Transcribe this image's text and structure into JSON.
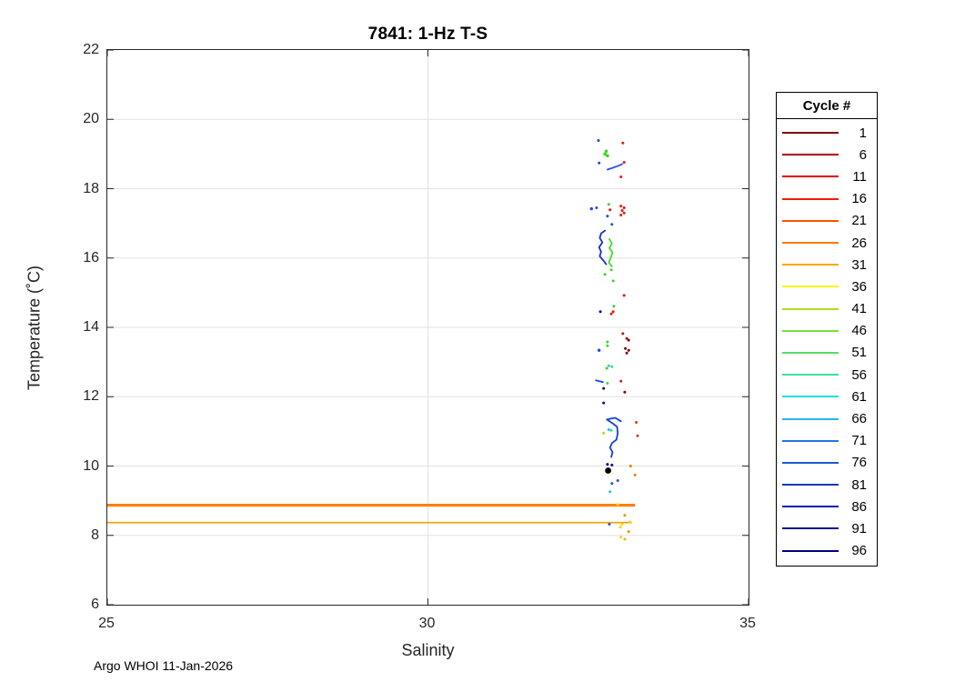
{
  "title": "7841: 1-Hz T-S",
  "xlabel": "Salinity",
  "ylabel": "Temperature (˚C)",
  "footer": "Argo WHOI 11-Jan-2026",
  "legend": {
    "title": "Cycle #",
    "entries": [
      {
        "label": "1",
        "color": "#7f0000"
      },
      {
        "label": "6",
        "color": "#b00000"
      },
      {
        "label": "11",
        "color": "#e10000"
      },
      {
        "label": "16",
        "color": "#f41a00"
      },
      {
        "label": "21",
        "color": "#fb5300"
      },
      {
        "label": "26",
        "color": "#f97b00"
      },
      {
        "label": "31",
        "color": "#ffa600"
      },
      {
        "label": "36",
        "color": "#f5f514"
      },
      {
        "label": "41",
        "color": "#aade22"
      },
      {
        "label": "46",
        "color": "#77e03a"
      },
      {
        "label": "51",
        "color": "#55dd66"
      },
      {
        "label": "56",
        "color": "#3ce0a0"
      },
      {
        "label": "61",
        "color": "#21dede"
      },
      {
        "label": "66",
        "color": "#28b4ee"
      },
      {
        "label": "71",
        "color": "#2277e0"
      },
      {
        "label": "76",
        "color": "#1b5ad0"
      },
      {
        "label": "81",
        "color": "#1238c0"
      },
      {
        "label": "86",
        "color": "#0a1fae"
      },
      {
        "label": "91",
        "color": "#051091"
      },
      {
        "label": "96",
        "color": "#000080"
      }
    ]
  },
  "chart_data": {
    "type": "scatter",
    "title": "7841: 1-Hz T-S",
    "xlabel": "Salinity",
    "ylabel": "Temperature (C)",
    "xlim": [
      25,
      35
    ],
    "ylim": [
      6,
      22
    ],
    "xticks": [
      25,
      30,
      35
    ],
    "yticks": [
      6,
      8,
      10,
      12,
      14,
      16,
      18,
      20,
      22
    ],
    "grid": {
      "x": [
        30
      ],
      "y": [
        8,
        10,
        12,
        14,
        16,
        18,
        20
      ],
      "color": "#e2e2e2"
    },
    "legend_position": "right-outside",
    "hlines": [
      {
        "t": 8.87,
        "s_min": 25,
        "s_max": 33.23,
        "color": "#ff8000",
        "width": 3.2
      },
      {
        "t": 8.37,
        "s_min": 25,
        "s_max": 33.18,
        "color": "#f0a000",
        "width": 1.6
      }
    ],
    "polylines": [
      {
        "name": "trace-18.6C",
        "color": "#2a52e0",
        "width": 1.8,
        "points": [
          [
            32.8,
            18.55
          ],
          [
            32.88,
            18.6
          ],
          [
            32.97,
            18.66
          ],
          [
            33.03,
            18.71
          ]
        ]
      },
      {
        "name": "trace-16C-blue",
        "color": "#1430d6",
        "width": 1.8,
        "points": [
          [
            32.76,
            16.79
          ],
          [
            32.7,
            16.71
          ],
          [
            32.68,
            16.58
          ],
          [
            32.72,
            16.45
          ],
          [
            32.67,
            16.31
          ],
          [
            32.7,
            16.18
          ],
          [
            32.68,
            16.05
          ],
          [
            32.74,
            15.92
          ],
          [
            32.78,
            15.82
          ]
        ]
      },
      {
        "name": "trace-16C-green",
        "color": "#46db28",
        "width": 1.8,
        "points": [
          [
            32.83,
            16.55
          ],
          [
            32.87,
            16.42
          ],
          [
            32.83,
            16.29
          ],
          [
            32.88,
            16.16
          ],
          [
            32.85,
            16.0
          ],
          [
            32.82,
            15.87
          ],
          [
            32.87,
            15.76
          ]
        ]
      },
      {
        "name": "trace-12.4C",
        "color": "#2244ee",
        "width": 1.8,
        "points": [
          [
            32.62,
            12.47
          ],
          [
            32.73,
            12.42
          ]
        ]
      },
      {
        "name": "trace-11C-blue",
        "color": "#1240d8",
        "width": 1.8,
        "points": [
          [
            33.01,
            11.29
          ],
          [
            32.92,
            11.39
          ],
          [
            32.86,
            11.37
          ],
          [
            32.79,
            11.34
          ],
          [
            32.89,
            11.22
          ],
          [
            32.95,
            11.13
          ],
          [
            32.96,
            10.95
          ],
          [
            32.94,
            10.76
          ],
          [
            32.87,
            10.66
          ],
          [
            32.84,
            10.53
          ],
          [
            32.88,
            10.4
          ],
          [
            32.86,
            10.26
          ]
        ]
      }
    ],
    "points": [
      {
        "s": 32.66,
        "t": 19.39,
        "c": "#2244ee"
      },
      {
        "s": 33.04,
        "t": 19.32,
        "c": "#e61414"
      },
      {
        "s": 32.78,
        "t": 19.08,
        "c": "#3fd42a",
        "r": 1.8
      },
      {
        "s": 32.76,
        "t": 19.0,
        "c": "#3fd42a",
        "r": 1.8
      },
      {
        "s": 32.8,
        "t": 18.95,
        "c": "#3fd42a",
        "r": 1.8
      },
      {
        "s": 32.67,
        "t": 18.74,
        "c": "#2244ee"
      },
      {
        "s": 33.06,
        "t": 18.76,
        "c": "#e61414"
      },
      {
        "s": 33.01,
        "t": 18.34,
        "c": "#e61414"
      },
      {
        "s": 32.82,
        "t": 17.55,
        "c": "#3fd42a"
      },
      {
        "s": 32.55,
        "t": 17.42,
        "c": "#2244ee",
        "r": 1.7
      },
      {
        "s": 32.63,
        "t": 17.45,
        "c": "#2244ee"
      },
      {
        "s": 32.84,
        "t": 17.39,
        "c": "#e61414"
      },
      {
        "s": 33.01,
        "t": 17.5,
        "c": "#e61414"
      },
      {
        "s": 33.06,
        "t": 17.45,
        "c": "#e61414"
      },
      {
        "s": 33.03,
        "t": 17.37,
        "c": "#e61414"
      },
      {
        "s": 33.06,
        "t": 17.3,
        "c": "#e61414"
      },
      {
        "s": 33.01,
        "t": 17.24,
        "c": "#e61414"
      },
      {
        "s": 32.8,
        "t": 17.21,
        "c": "#2244ee"
      },
      {
        "s": 32.87,
        "t": 16.97,
        "c": "#2244ee"
      },
      {
        "s": 32.86,
        "t": 15.66,
        "c": "#3fd42a"
      },
      {
        "s": 32.76,
        "t": 15.53,
        "c": "#3fd42a"
      },
      {
        "s": 32.89,
        "t": 15.34,
        "c": "#3fd42a"
      },
      {
        "s": 33.06,
        "t": 14.92,
        "c": "#e61414"
      },
      {
        "s": 32.9,
        "t": 14.61,
        "c": "#3fd42a"
      },
      {
        "s": 32.69,
        "t": 14.45,
        "c": "#000a99"
      },
      {
        "s": 32.86,
        "t": 14.39,
        "c": "#e61414"
      },
      {
        "s": 32.89,
        "t": 14.45,
        "c": "#e61414"
      },
      {
        "s": 33.04,
        "t": 13.82,
        "c": "#cc1111"
      },
      {
        "s": 33.1,
        "t": 13.68,
        "c": "#991111"
      },
      {
        "s": 33.13,
        "t": 13.63,
        "c": "#7f0000"
      },
      {
        "s": 32.8,
        "t": 13.58,
        "c": "#3fd42a"
      },
      {
        "s": 32.8,
        "t": 13.47,
        "c": "#3fd42a"
      },
      {
        "s": 33.08,
        "t": 13.39,
        "c": "#7f0000"
      },
      {
        "s": 33.13,
        "t": 13.34,
        "c": "#7f0000"
      },
      {
        "s": 33.1,
        "t": 13.26,
        "c": "#7f0000"
      },
      {
        "s": 32.67,
        "t": 13.34,
        "c": "#2244ee",
        "r": 1.7
      },
      {
        "s": 32.82,
        "t": 12.89,
        "c": "#2fd9a8"
      },
      {
        "s": 32.87,
        "t": 12.87,
        "c": "#2fd9a8"
      },
      {
        "s": 32.79,
        "t": 12.82,
        "c": "#3fd42a"
      },
      {
        "s": 32.8,
        "t": 12.39,
        "c": "#3fd42a"
      },
      {
        "s": 32.74,
        "t": 12.24,
        "c": "#111111"
      },
      {
        "s": 33.01,
        "t": 12.45,
        "c": "#e61414"
      },
      {
        "s": 33.07,
        "t": 12.13,
        "c": "#7f0000"
      },
      {
        "s": 32.74,
        "t": 11.82,
        "c": "#000a99"
      },
      {
        "s": 33.25,
        "t": 11.26,
        "c": "#e63214"
      },
      {
        "s": 33.27,
        "t": 10.87,
        "c": "#e63214"
      },
      {
        "s": 32.82,
        "t": 11.05,
        "c": "#18c8e8"
      },
      {
        "s": 32.86,
        "t": 11.03,
        "c": "#2fd9a8"
      },
      {
        "s": 32.74,
        "t": 10.95,
        "c": "#aadd22"
      },
      {
        "s": 32.8,
        "t": 10.05,
        "c": "#000a99"
      },
      {
        "s": 32.87,
        "t": 10.03,
        "c": "#000a99"
      },
      {
        "s": 33.16,
        "t": 10.0,
        "c": "#f07800"
      },
      {
        "s": 33.23,
        "t": 9.74,
        "c": "#f07800"
      },
      {
        "s": 32.87,
        "t": 9.5,
        "c": "#2255dd"
      },
      {
        "s": 32.96,
        "t": 9.58,
        "c": "#2255dd"
      },
      {
        "s": 32.84,
        "t": 9.26,
        "c": "#18c8e8"
      },
      {
        "s": 32.96,
        "t": 8.89,
        "c": "#ffe01e"
      },
      {
        "s": 33.07,
        "t": 8.58,
        "c": "#f09000"
      },
      {
        "s": 33.15,
        "t": 8.39,
        "c": "#ffd000"
      },
      {
        "s": 33.03,
        "t": 8.32,
        "c": "#ffd000"
      },
      {
        "s": 33.0,
        "t": 8.24,
        "c": "#ffd000"
      },
      {
        "s": 32.83,
        "t": 8.32,
        "c": "#2255dd"
      },
      {
        "s": 33.13,
        "t": 8.11,
        "c": "#f09000"
      },
      {
        "s": 33.01,
        "t": 7.95,
        "c": "#ffd000"
      },
      {
        "s": 33.07,
        "t": 7.89,
        "c": "#f0b400"
      }
    ],
    "marker": {
      "s": 32.81,
      "t": 9.87,
      "color": "#000000",
      "r": 3.4
    }
  }
}
